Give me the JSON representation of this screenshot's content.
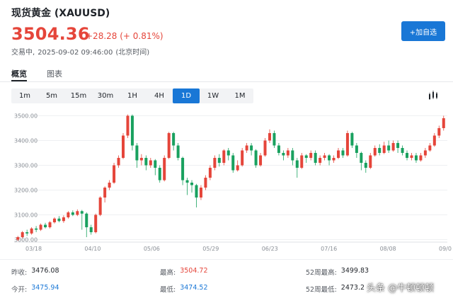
{
  "header": {
    "title": "现货黄金 (XAUUSD)",
    "price": "3504.36",
    "change": "+28.28 (+ 0.81%)",
    "status_label": "交易中,",
    "datetime": "2025-09-02 09:46:00",
    "timezone": "(北京时间)",
    "add_button": "+加自选"
  },
  "tabs": [
    {
      "label": "概览"
    },
    {
      "label": "图表"
    }
  ],
  "intervals": [
    "1m",
    "5m",
    "15m",
    "30m",
    "1H",
    "4H",
    "1D",
    "1W",
    "1M"
  ],
  "selected_interval": "1D",
  "colors": {
    "up": "#e5453a",
    "down": "#19a15f",
    "accent": "#1977d6"
  },
  "chart_data": {
    "type": "candlestick",
    "y_ticks": [
      "3500.00",
      "3400.00",
      "3300.00",
      "3200.00",
      "3100.00",
      "3000.00"
    ],
    "ylim": [
      2990,
      3510
    ],
    "x_ticks": [
      "03/18",
      "04/10",
      "05/06",
      "05/29",
      "06/23",
      "07/16",
      "08/08",
      "09/0"
    ],
    "candles": [
      [
        3000,
        3010,
        2995,
        3015
      ],
      [
        3010,
        3030,
        3005,
        3035
      ],
      [
        3030,
        3025,
        3015,
        3040
      ],
      [
        3025,
        3045,
        3020,
        3050
      ],
      [
        3045,
        3040,
        3030,
        3055
      ],
      [
        3040,
        3060,
        3035,
        3065
      ],
      [
        3060,
        3050,
        3045,
        3068
      ],
      [
        3050,
        3070,
        3045,
        3075
      ],
      [
        3070,
        3085,
        3065,
        3090
      ],
      [
        3085,
        3075,
        3070,
        3095
      ],
      [
        3075,
        3090,
        3068,
        3098
      ],
      [
        3090,
        3110,
        3085,
        3115
      ],
      [
        3110,
        3100,
        3095,
        3118
      ],
      [
        3100,
        3115,
        3095,
        3122
      ],
      [
        3115,
        3105,
        3040,
        3120
      ],
      [
        3105,
        3050,
        3010,
        3110
      ],
      [
        3050,
        3030,
        3020,
        3060
      ],
      [
        3030,
        3100,
        3025,
        3105
      ],
      [
        3100,
        3170,
        3095,
        3175
      ],
      [
        3170,
        3210,
        3150,
        3215
      ],
      [
        3210,
        3230,
        3200,
        3240
      ],
      [
        3230,
        3300,
        3225,
        3310
      ],
      [
        3300,
        3330,
        3290,
        3340
      ],
      [
        3330,
        3420,
        3325,
        3430
      ],
      [
        3420,
        3500,
        3410,
        3505
      ],
      [
        3500,
        3380,
        3360,
        3505
      ],
      [
        3380,
        3320,
        3290,
        3390
      ],
      [
        3320,
        3330,
        3300,
        3345
      ],
      [
        3330,
        3300,
        3280,
        3340
      ],
      [
        3300,
        3320,
        3290,
        3330
      ],
      [
        3320,
        3290,
        3260,
        3325
      ],
      [
        3290,
        3240,
        3230,
        3300
      ],
      [
        3240,
        3330,
        3235,
        3340
      ],
      [
        3330,
        3430,
        3325,
        3435
      ],
      [
        3430,
        3380,
        3360,
        3435
      ],
      [
        3380,
        3330,
        3320,
        3390
      ],
      [
        3330,
        3240,
        3220,
        3335
      ],
      [
        3240,
        3230,
        3180,
        3250
      ],
      [
        3230,
        3220,
        3190,
        3240
      ],
      [
        3220,
        3170,
        3130,
        3225
      ],
      [
        3170,
        3210,
        3160,
        3220
      ],
      [
        3210,
        3250,
        3200,
        3260
      ],
      [
        3250,
        3290,
        3240,
        3300
      ],
      [
        3290,
        3330,
        3280,
        3340
      ],
      [
        3330,
        3310,
        3295,
        3345
      ],
      [
        3310,
        3360,
        3300,
        3365
      ],
      [
        3360,
        3340,
        3320,
        3370
      ],
      [
        3340,
        3280,
        3270,
        3350
      ],
      [
        3280,
        3300,
        3275,
        3320
      ],
      [
        3300,
        3360,
        3295,
        3370
      ],
      [
        3360,
        3380,
        3350,
        3390
      ],
      [
        3380,
        3360,
        3340,
        3390
      ],
      [
        3360,
        3300,
        3290,
        3365
      ],
      [
        3300,
        3340,
        3295,
        3350
      ],
      [
        3340,
        3400,
        3335,
        3410
      ],
      [
        3400,
        3430,
        3390,
        3445
      ],
      [
        3430,
        3380,
        3370,
        3440
      ],
      [
        3380,
        3350,
        3340,
        3390
      ],
      [
        3350,
        3340,
        3320,
        3360
      ],
      [
        3340,
        3360,
        3330,
        3370
      ],
      [
        3360,
        3320,
        3300,
        3370
      ],
      [
        3320,
        3290,
        3250,
        3330
      ],
      [
        3290,
        3340,
        3285,
        3350
      ],
      [
        3340,
        3330,
        3310,
        3345
      ],
      [
        3330,
        3350,
        3320,
        3360
      ],
      [
        3350,
        3310,
        3300,
        3360
      ],
      [
        3310,
        3330,
        3300,
        3340
      ],
      [
        3330,
        3340,
        3320,
        3350
      ],
      [
        3340,
        3320,
        3300,
        3345
      ],
      [
        3320,
        3330,
        3310,
        3340
      ],
      [
        3330,
        3360,
        3325,
        3370
      ],
      [
        3360,
        3340,
        3330,
        3370
      ],
      [
        3340,
        3430,
        3335,
        3440
      ],
      [
        3430,
        3380,
        3370,
        3435
      ],
      [
        3380,
        3350,
        3330,
        3390
      ],
      [
        3350,
        3310,
        3280,
        3355
      ],
      [
        3310,
        3290,
        3270,
        3320
      ],
      [
        3290,
        3340,
        3285,
        3350
      ],
      [
        3340,
        3370,
        3335,
        3380
      ],
      [
        3370,
        3350,
        3340,
        3385
      ],
      [
        3350,
        3380,
        3345,
        3395
      ],
      [
        3380,
        3360,
        3350,
        3400
      ],
      [
        3360,
        3390,
        3355,
        3400
      ],
      [
        3390,
        3370,
        3350,
        3400
      ],
      [
        3370,
        3350,
        3340,
        3380
      ],
      [
        3350,
        3330,
        3320,
        3360
      ],
      [
        3330,
        3340,
        3320,
        3350
      ],
      [
        3340,
        3320,
        3310,
        3350
      ],
      [
        3320,
        3340,
        3315,
        3350
      ],
      [
        3340,
        3360,
        3330,
        3370
      ],
      [
        3360,
        3380,
        3355,
        3390
      ],
      [
        3380,
        3420,
        3375,
        3430
      ],
      [
        3420,
        3450,
        3410,
        3460
      ],
      [
        3450,
        3490,
        3440,
        3500
      ]
    ]
  },
  "stats": {
    "prev_close_label": "昨收:",
    "prev_close": "3476.08",
    "open_label": "今开:",
    "open": "3475.94",
    "high_label": "最高:",
    "high": "3504.72",
    "low_label": "最低:",
    "low": "3474.52",
    "high52_label": "52周最高:",
    "high52": "3499.83",
    "low52_label": "52周最低:",
    "low52": "2473.2"
  },
  "watermark": "头条 @牛顿顿顿"
}
